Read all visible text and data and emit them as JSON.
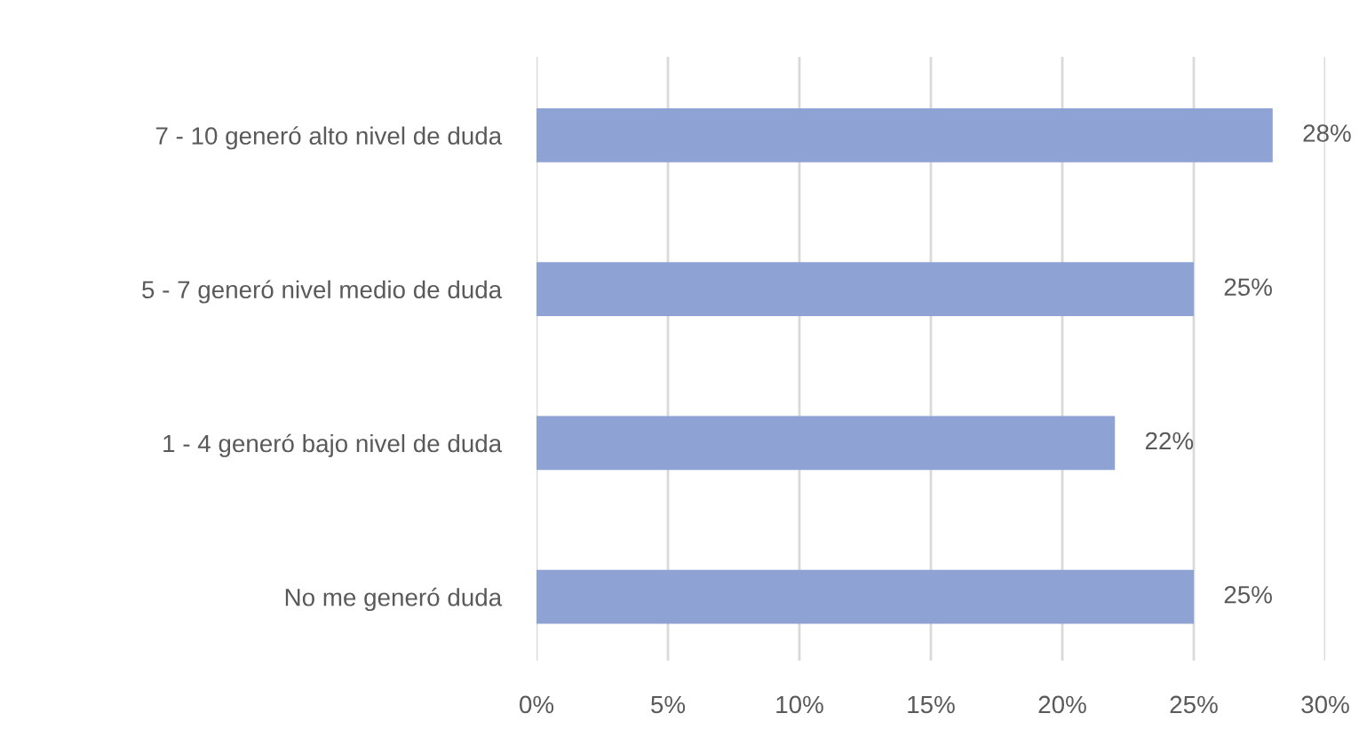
{
  "chart_data": {
    "type": "bar",
    "orientation": "horizontal",
    "categories": [
      "7 - 10 generó alto nivel de duda",
      "5 - 7 generó nivel medio de duda",
      "1 - 4 generó bajo nivel de duda",
      "No me generó duda"
    ],
    "values": [
      28,
      25,
      22,
      25
    ],
    "value_labels": [
      "28%",
      "25%",
      "22%",
      "25%"
    ],
    "color": "#8fa2d4",
    "xlim": [
      0,
      30
    ],
    "xticks": [
      {
        "value": 0,
        "label": "0%"
      },
      {
        "value": 5,
        "label": "5%"
      },
      {
        "value": 10,
        "label": "10%"
      },
      {
        "value": 15,
        "label": "15%"
      },
      {
        "value": 20,
        "label": "20%"
      },
      {
        "value": 25,
        "label": "25%"
      },
      {
        "value": 30,
        "label": "30%"
      }
    ],
    "grid": "x"
  }
}
